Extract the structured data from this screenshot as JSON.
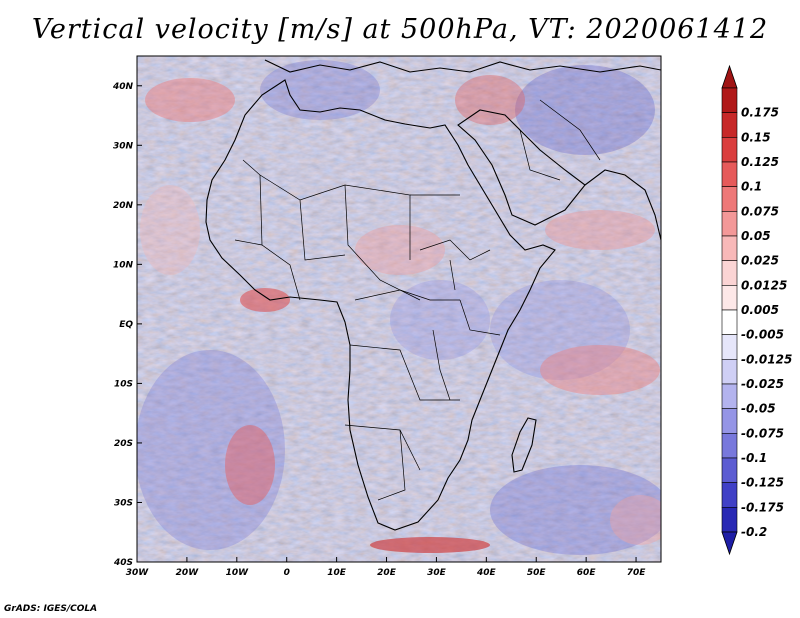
{
  "title": "Vertical velocity [m/s] at 500hPa, VT: 2020061412",
  "footer": "GrADS: IGES/COLA",
  "map": {
    "region": "Africa",
    "lon_range": [
      -30,
      75
    ],
    "lat_range": [
      -40,
      45
    ],
    "lon_ticks": [
      {
        "value": -30,
        "label": "30W"
      },
      {
        "value": -20,
        "label": "20W"
      },
      {
        "value": -10,
        "label": "10W"
      },
      {
        "value": 0,
        "label": "0"
      },
      {
        "value": 10,
        "label": "10E"
      },
      {
        "value": 20,
        "label": "20E"
      },
      {
        "value": 30,
        "label": "30E"
      },
      {
        "value": 40,
        "label": "40E"
      },
      {
        "value": 50,
        "label": "50E"
      },
      {
        "value": 60,
        "label": "60E"
      },
      {
        "value": 70,
        "label": "70E"
      }
    ],
    "lat_ticks": [
      {
        "value": 40,
        "label": "40N"
      },
      {
        "value": 30,
        "label": "30N"
      },
      {
        "value": 20,
        "label": "20N"
      },
      {
        "value": 10,
        "label": "10N"
      },
      {
        "value": 0,
        "label": "EQ"
      },
      {
        "value": -10,
        "label": "10S"
      },
      {
        "value": -20,
        "label": "20S"
      },
      {
        "value": -30,
        "label": "30S"
      },
      {
        "value": -40,
        "label": "40S"
      }
    ]
  },
  "colorbar": {
    "levels": [
      {
        "label": "0.175",
        "color": "#b01818"
      },
      {
        "label": "0.15",
        "color": "#c72828"
      },
      {
        "label": "0.125",
        "color": "#da3e3e"
      },
      {
        "label": "0.1",
        "color": "#e65a5a"
      },
      {
        "label": "0.075",
        "color": "#ee7878"
      },
      {
        "label": "0.05",
        "color": "#f39898"
      },
      {
        "label": "0.025",
        "color": "#f8b8b8"
      },
      {
        "label": "0.0125",
        "color": "#fbd4d4"
      },
      {
        "label": "0.005",
        "color": "#fde8e8"
      },
      {
        "label": "-0.005",
        "color": "#ffffff"
      },
      {
        "label": "-0.0125",
        "color": "#e6e6fa"
      },
      {
        "label": "-0.025",
        "color": "#cfcff5"
      },
      {
        "label": "-0.05",
        "color": "#b3b3ee"
      },
      {
        "label": "-0.075",
        "color": "#9595e6"
      },
      {
        "label": "-0.1",
        "color": "#7878dc"
      },
      {
        "label": "-0.125",
        "color": "#5c5cd2"
      },
      {
        "label": "-0.175",
        "color": "#4040c6"
      },
      {
        "label": "-0.2",
        "color": "#2828b4"
      }
    ],
    "top_color": "#a01414",
    "bottom_color": "#1e1ea6"
  }
}
